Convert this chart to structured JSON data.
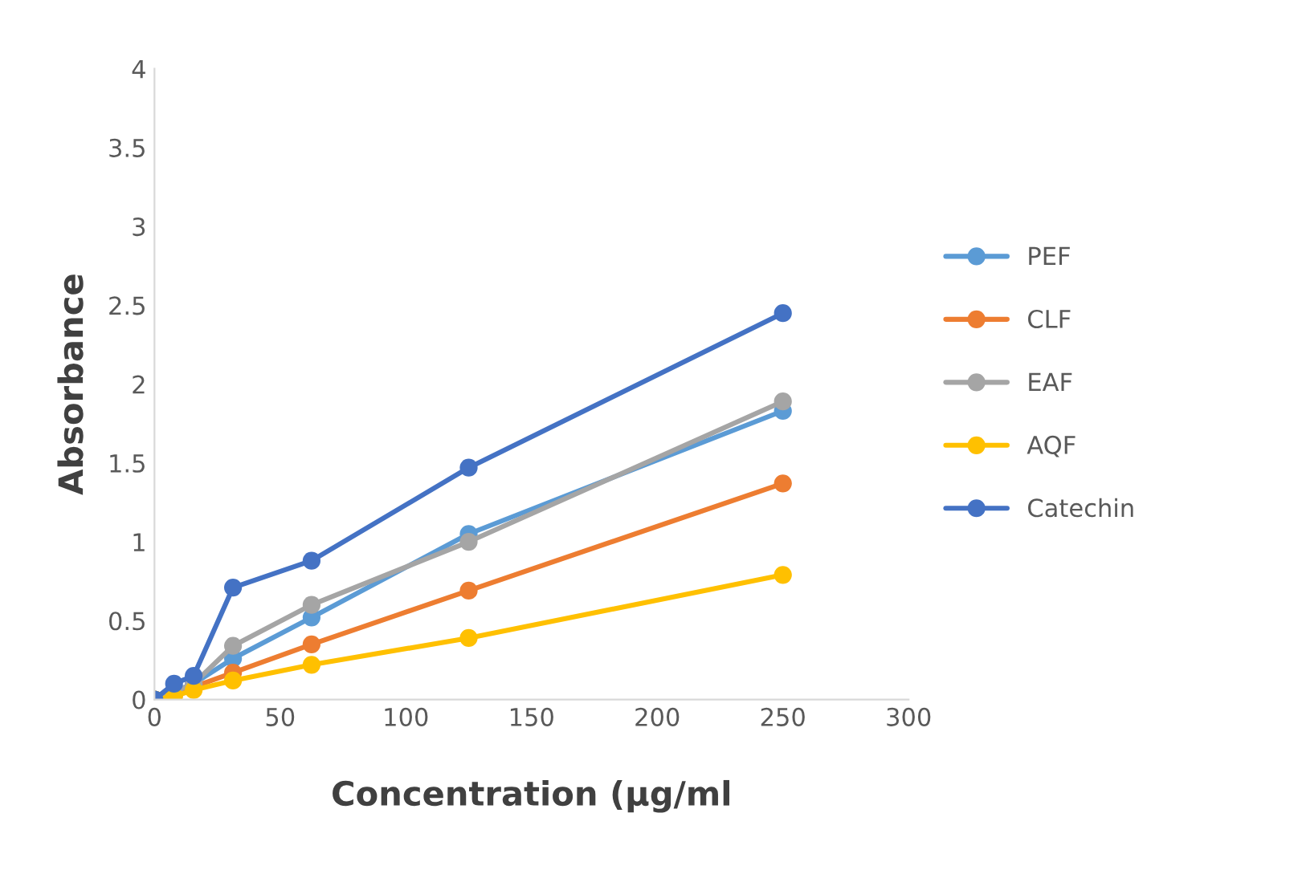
{
  "chart_data": {
    "type": "line",
    "xlabel": "Concentration (µg/ml",
    "ylabel": "Absorbance",
    "x": [
      0,
      7.8,
      15.6,
      31.25,
      62.5,
      125,
      250
    ],
    "series": [
      {
        "name": "PEF",
        "color": "#5b9bd5",
        "values": [
          0,
          0.05,
          0.1,
          0.26,
          0.52,
          1.05,
          1.83
        ]
      },
      {
        "name": "CLF",
        "color": "#ed7d31",
        "values": [
          0,
          0.03,
          0.08,
          0.17,
          0.35,
          0.69,
          1.37
        ]
      },
      {
        "name": "EAF",
        "color": "#a5a5a5",
        "values": [
          0,
          0.05,
          0.1,
          0.34,
          0.6,
          1.0,
          1.89
        ]
      },
      {
        "name": "AQF",
        "color": "#ffc000",
        "values": [
          0,
          0.02,
          0.06,
          0.12,
          0.22,
          0.39,
          0.79
        ]
      },
      {
        "name": "Catechin",
        "color": "#4472c4",
        "values": [
          0,
          0.1,
          0.15,
          0.71,
          0.88,
          1.47,
          2.45
        ]
      }
    ],
    "xlim": [
      0,
      300
    ],
    "xticks": [
      0,
      50,
      100,
      150,
      200,
      250,
      300
    ],
    "ylim": [
      0,
      4
    ],
    "yticks": [
      0,
      {
        "value": 0.5,
        "label": "0.5"
      },
      1,
      {
        "value": 1.5,
        "label": "1.5"
      },
      2,
      {
        "value": 2.5,
        "label": "2.5"
      },
      3,
      {
        "value": 3.5,
        "label": "3.5"
      },
      4
    ],
    "grid": false,
    "legend": "right",
    "marker": "circle",
    "line_style": "solid"
  }
}
